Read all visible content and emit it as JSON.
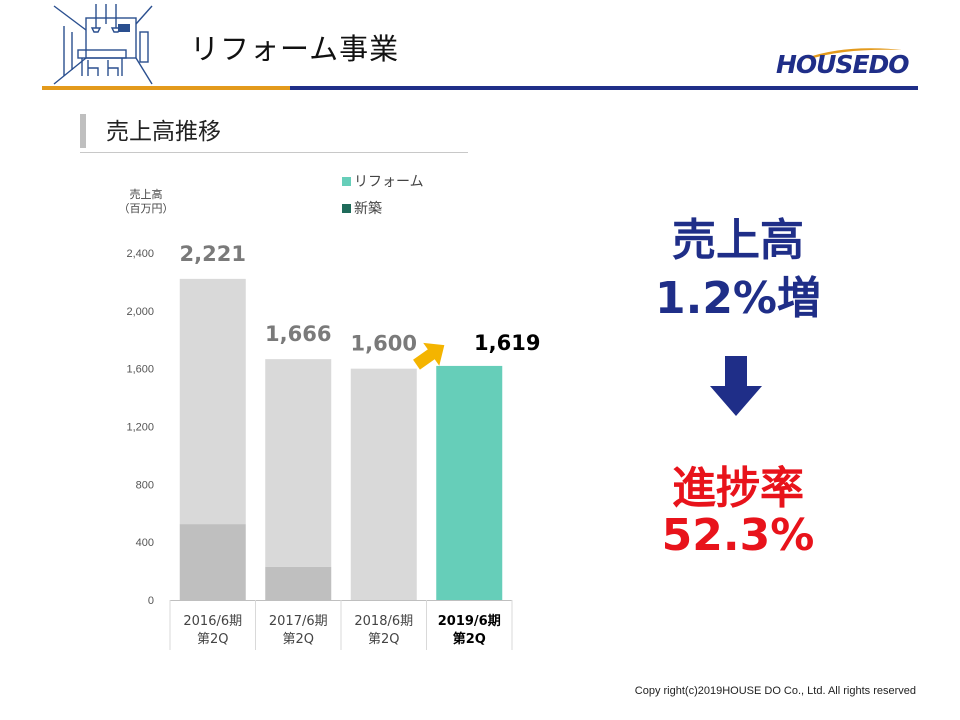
{
  "header": {
    "title": "リフォーム事業",
    "logo_text": "HOUSEDO"
  },
  "section": {
    "title": "売上高推移"
  },
  "colors": {
    "reform": "#66ceb9",
    "new_build": "#1f6b5a",
    "bar_gray": "#d9d9d9",
    "bar_dark_gray": "#bfbfbf",
    "accent_navy": "#1f2e88",
    "accent_red": "#e8131b",
    "accent_orange": "#e39a1c",
    "arrow_yellow": "#f4b400"
  },
  "chart_data": {
    "type": "bar",
    "stacked": true,
    "ylabel_lines": [
      "売上高",
      "（百万円）"
    ],
    "ylim": [
      0,
      2400
    ],
    "yticks": [
      0,
      400,
      800,
      1200,
      1600,
      2000,
      2400
    ],
    "categories": [
      [
        "2016/6期",
        "第2Q"
      ],
      [
        "2017/6期",
        "第2Q"
      ],
      [
        "2018/6期",
        "第2Q"
      ],
      [
        "2019/6期",
        "第2Q"
      ]
    ],
    "highlight_index": 3,
    "legend": [
      {
        "name": "リフォーム",
        "color": "#66ceb9"
      },
      {
        "name": "新築",
        "color": "#1f6b5a"
      }
    ],
    "legend_position": "top",
    "grid": false,
    "totals": [
      2221,
      1666,
      1600,
      1619
    ],
    "total_labels": [
      "2,221",
      "1,666",
      "1,600",
      "1,619"
    ],
    "series": [
      {
        "name": "新築",
        "values": [
          525,
          230,
          0,
          0
        ]
      },
      {
        "name": "リフォーム",
        "values": [
          1696,
          1436,
          1600,
          1619
        ]
      }
    ]
  },
  "kpi": {
    "sales_label": "売上高",
    "sales_value": "1.2%増",
    "progress_label": "進捗率",
    "progress_value": "52.3%"
  },
  "footer": {
    "copyright": "Copy right(c)2019HOUSE DO Co., Ltd. All rights reserved"
  }
}
